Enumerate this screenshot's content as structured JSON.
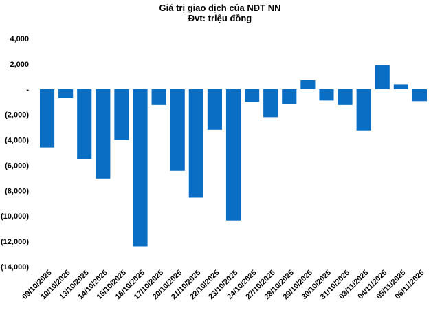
{
  "chart_data": {
    "type": "bar",
    "title": "Giá trị giao dịch của NĐT NN",
    "subtitle": "Đvt: triệu đồng",
    "xlabel": "",
    "ylabel": "",
    "ylim": [
      -14000,
      4000
    ],
    "yticks": [
      4000,
      2000,
      0,
      -2000,
      -4000,
      -6000,
      -8000,
      -10000,
      -12000,
      -14000
    ],
    "ytick_labels": [
      "4,000",
      "2,000",
      "-",
      "(2,000)",
      "(4,000)",
      "(6,000)",
      "(8,000)",
      "(10,000)",
      "(12,000)",
      "(14,000)"
    ],
    "categories": [
      "09/10/2025",
      "10/10/2025",
      "13/10/2025",
      "14/10/2025",
      "15/10/2025",
      "16/10/2025",
      "17/10/2025",
      "20/10/2025",
      "21/10/2025",
      "22/10/2025",
      "23/10/2025",
      "24/10/2025",
      "27/10/2025",
      "28/10/2025",
      "29/10/2025",
      "30/10/2025",
      "31/10/2025",
      "03/11/2025",
      "04/11/2025",
      "05/11/2025",
      "06/11/2025"
    ],
    "values": [
      -4600,
      -700,
      -5500,
      -7050,
      -4000,
      -12400,
      -1250,
      -6450,
      -8550,
      -3200,
      -10350,
      -1000,
      -2200,
      -1200,
      700,
      -900,
      -1250,
      -3250,
      1900,
      400,
      -950
    ],
    "bar_color": "#0a6fc4",
    "grid": false,
    "legend": "none"
  }
}
